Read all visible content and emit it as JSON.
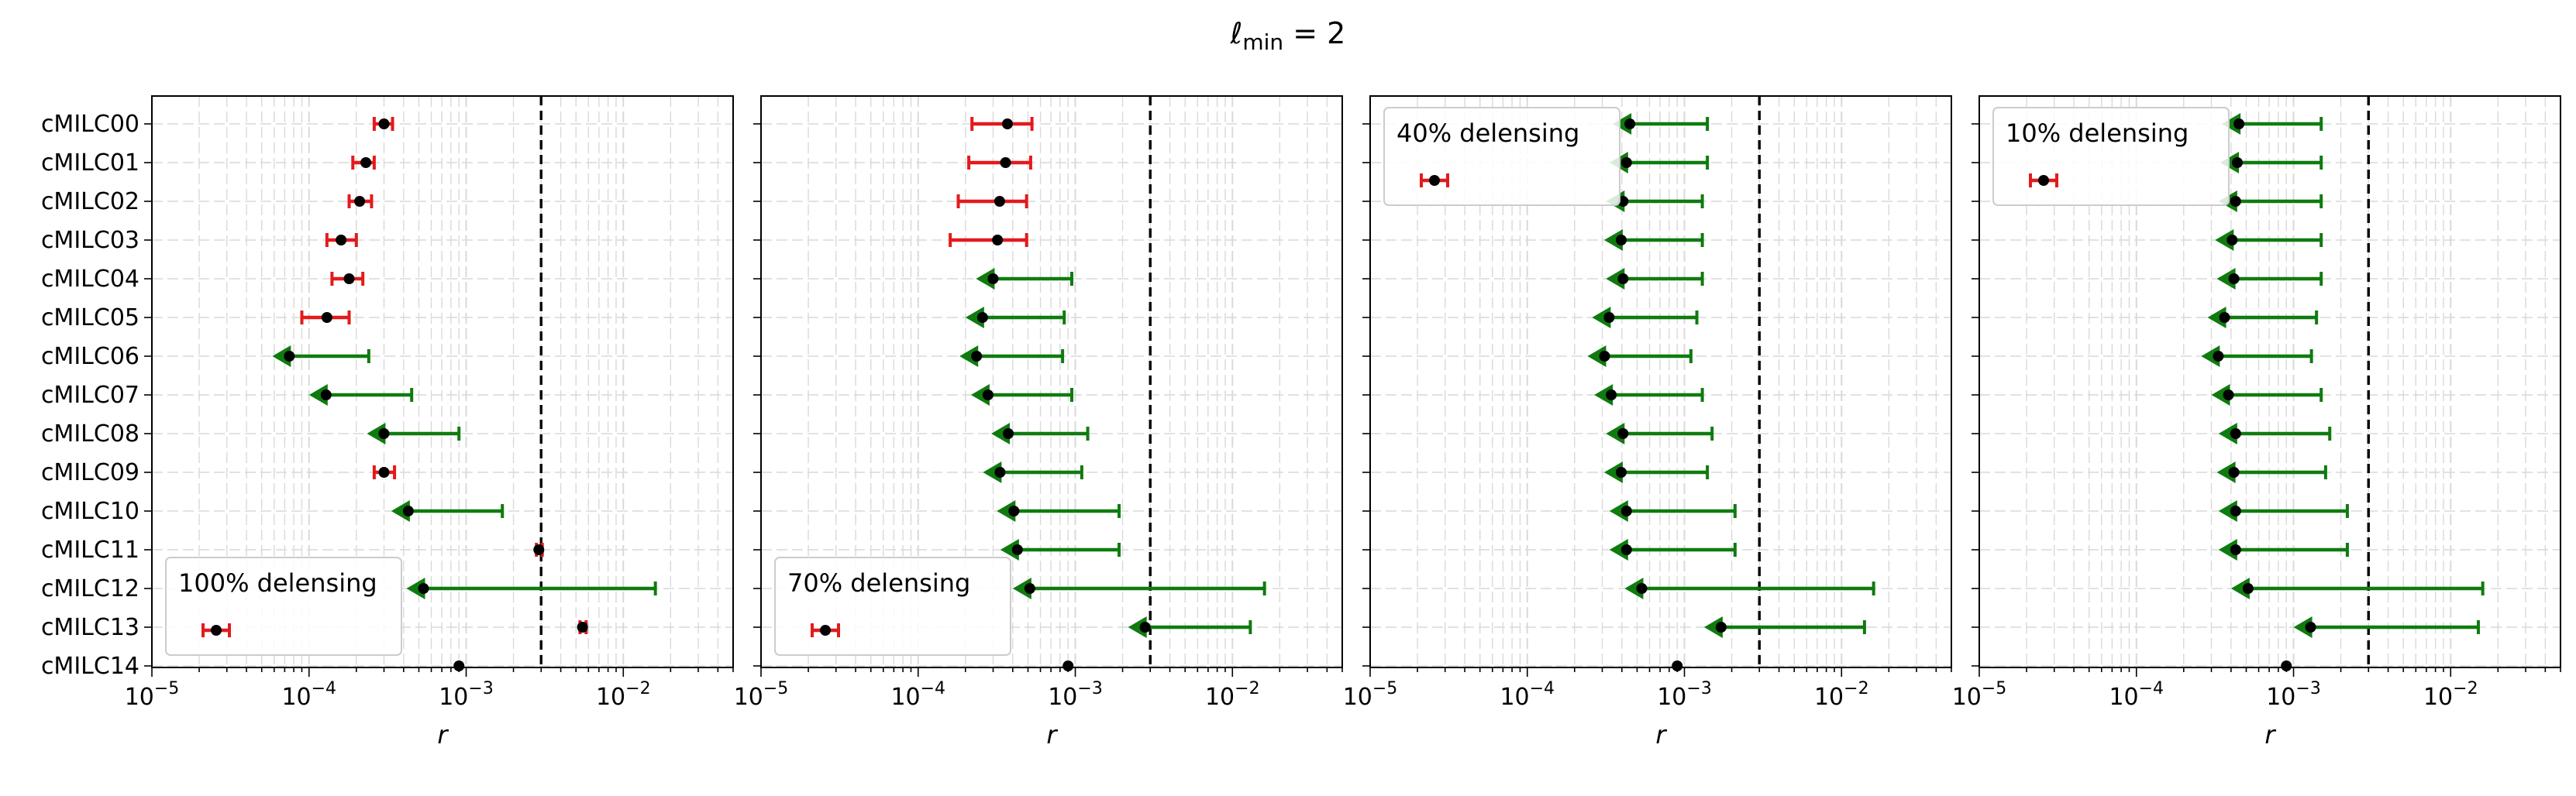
{
  "title_main": "ℓ",
  "title_sub": "min",
  "title_tail": " = 2",
  "chart_data": [
    {
      "type": "scatter",
      "legend": "100% delensing",
      "legend_placement": "lower-left",
      "xlabel": "r",
      "xscale": "log",
      "xlim": [
        1e-05,
        0.05
      ],
      "grid": true,
      "reference_line": 0.003,
      "categories": [
        "cMILC00",
        "cMILC01",
        "cMILC02",
        "cMILC03",
        "cMILC04",
        "cMILC05",
        "cMILC06",
        "cMILC07",
        "cMILC08",
        "cMILC09",
        "cMILC10",
        "cMILC11",
        "cMILC12",
        "cMILC13",
        "cMILC14"
      ],
      "points": [
        {
          "center": 0.0003,
          "kind": "detection",
          "low": 0.00026,
          "high": 0.00034
        },
        {
          "center": 0.00023,
          "kind": "detection",
          "low": 0.00019,
          "high": 0.00026
        },
        {
          "center": 0.00021,
          "kind": "detection",
          "low": 0.00018,
          "high": 0.00025
        },
        {
          "center": 0.00016,
          "kind": "detection",
          "low": 0.00013,
          "high": 0.0002
        },
        {
          "center": 0.00018,
          "kind": "detection",
          "low": 0.00014,
          "high": 0.00022
        },
        {
          "center": 0.00013,
          "kind": "detection",
          "low": 9e-05,
          "high": 0.00018
        },
        {
          "center": 7e-05,
          "kind": "upper_limit",
          "low": 7e-05,
          "high": 0.00024
        },
        {
          "center": 0.00012,
          "kind": "upper_limit",
          "low": 0.00012,
          "high": 0.00045
        },
        {
          "center": 0.00028,
          "kind": "upper_limit",
          "low": 0.00028,
          "high": 0.0009
        },
        {
          "center": 0.0003,
          "kind": "detection",
          "low": 0.00026,
          "high": 0.00035
        },
        {
          "center": 0.0004,
          "kind": "upper_limit",
          "low": 0.0004,
          "high": 0.0017
        },
        {
          "center": 0.0029,
          "kind": "detection",
          "low": 0.0028,
          "high": 0.00305
        },
        {
          "center": 0.0005,
          "kind": "upper_limit",
          "low": 0.0005,
          "high": 0.016
        },
        {
          "center": 0.0055,
          "kind": "detection",
          "low": 0.0053,
          "high": 0.0058
        },
        {
          "center": 0.0009,
          "kind": "point"
        }
      ]
    },
    {
      "type": "scatter",
      "legend": "70% delensing",
      "legend_placement": "lower-left",
      "xlabel": "r",
      "xscale": "log",
      "xlim": [
        1e-05,
        0.05
      ],
      "grid": true,
      "reference_line": 0.003,
      "categories": [
        "cMILC00",
        "cMILC01",
        "cMILC02",
        "cMILC03",
        "cMILC04",
        "cMILC05",
        "cMILC06",
        "cMILC07",
        "cMILC08",
        "cMILC09",
        "cMILC10",
        "cMILC11",
        "cMILC12",
        "cMILC13",
        "cMILC14"
      ],
      "points": [
        {
          "center": 0.00037,
          "kind": "detection",
          "low": 0.00022,
          "high": 0.00053
        },
        {
          "center": 0.00036,
          "kind": "detection",
          "low": 0.00021,
          "high": 0.00052
        },
        {
          "center": 0.00033,
          "kind": "detection",
          "low": 0.00018,
          "high": 0.00049
        },
        {
          "center": 0.00032,
          "kind": "detection",
          "low": 0.00016,
          "high": 0.00049
        },
        {
          "center": 0.00028,
          "kind": "upper_limit",
          "low": 0.00028,
          "high": 0.00095
        },
        {
          "center": 0.00024,
          "kind": "upper_limit",
          "low": 0.00024,
          "high": 0.00085
        },
        {
          "center": 0.00022,
          "kind": "upper_limit",
          "low": 0.00022,
          "high": 0.00083
        },
        {
          "center": 0.00026,
          "kind": "upper_limit",
          "low": 0.00026,
          "high": 0.00095
        },
        {
          "center": 0.00035,
          "kind": "upper_limit",
          "low": 0.00035,
          "high": 0.0012
        },
        {
          "center": 0.00031,
          "kind": "upper_limit",
          "low": 0.00031,
          "high": 0.0011
        },
        {
          "center": 0.00038,
          "kind": "upper_limit",
          "low": 0.00038,
          "high": 0.0019
        },
        {
          "center": 0.0004,
          "kind": "upper_limit",
          "low": 0.0004,
          "high": 0.0019
        },
        {
          "center": 0.00048,
          "kind": "upper_limit",
          "low": 0.00048,
          "high": 0.016
        },
        {
          "center": 0.0026,
          "kind": "upper_limit",
          "low": 0.0026,
          "high": 0.013
        },
        {
          "center": 0.0009,
          "kind": "point"
        }
      ]
    },
    {
      "type": "scatter",
      "legend": "40% delensing",
      "legend_placement": "upper-left",
      "xlabel": "r",
      "xscale": "log",
      "xlim": [
        1e-05,
        0.05
      ],
      "grid": true,
      "reference_line": 0.003,
      "categories": [
        "cMILC00",
        "cMILC01",
        "cMILC02",
        "cMILC03",
        "cMILC04",
        "cMILC05",
        "cMILC06",
        "cMILC07",
        "cMILC08",
        "cMILC09",
        "cMILC10",
        "cMILC11",
        "cMILC12",
        "cMILC13",
        "cMILC14"
      ],
      "points": [
        {
          "center": 0.00042,
          "kind": "upper_limit",
          "low": 0.00042,
          "high": 0.0014
        },
        {
          "center": 0.0004,
          "kind": "upper_limit",
          "low": 0.0004,
          "high": 0.0014
        },
        {
          "center": 0.00038,
          "kind": "upper_limit",
          "low": 0.00038,
          "high": 0.0013
        },
        {
          "center": 0.00037,
          "kind": "upper_limit",
          "low": 0.00037,
          "high": 0.0013
        },
        {
          "center": 0.00038,
          "kind": "upper_limit",
          "low": 0.00038,
          "high": 0.0013
        },
        {
          "center": 0.00031,
          "kind": "upper_limit",
          "low": 0.00031,
          "high": 0.0012
        },
        {
          "center": 0.00029,
          "kind": "upper_limit",
          "low": 0.00029,
          "high": 0.0011
        },
        {
          "center": 0.00032,
          "kind": "upper_limit",
          "low": 0.00032,
          "high": 0.0013
        },
        {
          "center": 0.00038,
          "kind": "upper_limit",
          "low": 0.00038,
          "high": 0.0015
        },
        {
          "center": 0.00037,
          "kind": "upper_limit",
          "low": 0.00037,
          "high": 0.0014
        },
        {
          "center": 0.0004,
          "kind": "upper_limit",
          "low": 0.0004,
          "high": 0.0021
        },
        {
          "center": 0.0004,
          "kind": "upper_limit",
          "low": 0.0004,
          "high": 0.0021
        },
        {
          "center": 0.0005,
          "kind": "upper_limit",
          "low": 0.0005,
          "high": 0.016
        },
        {
          "center": 0.0016,
          "kind": "upper_limit",
          "low": 0.0016,
          "high": 0.014
        },
        {
          "center": 0.0009,
          "kind": "point"
        }
      ]
    },
    {
      "type": "scatter",
      "legend": "10% delensing",
      "legend_placement": "upper-left",
      "xlabel": "r",
      "xscale": "log",
      "xlim": [
        1e-05,
        0.05
      ],
      "grid": true,
      "reference_line": 0.003,
      "categories": [
        "cMILC00",
        "cMILC01",
        "cMILC02",
        "cMILC03",
        "cMILC04",
        "cMILC05",
        "cMILC06",
        "cMILC07",
        "cMILC08",
        "cMILC09",
        "cMILC10",
        "cMILC11",
        "cMILC12",
        "cMILC13",
        "cMILC14"
      ],
      "points": [
        {
          "center": 0.00042,
          "kind": "upper_limit",
          "low": 0.00042,
          "high": 0.0015
        },
        {
          "center": 0.00041,
          "kind": "upper_limit",
          "low": 0.00041,
          "high": 0.0015
        },
        {
          "center": 0.0004,
          "kind": "upper_limit",
          "low": 0.0004,
          "high": 0.0015
        },
        {
          "center": 0.00038,
          "kind": "upper_limit",
          "low": 0.00038,
          "high": 0.0015
        },
        {
          "center": 0.00039,
          "kind": "upper_limit",
          "low": 0.00039,
          "high": 0.0015
        },
        {
          "center": 0.00034,
          "kind": "upper_limit",
          "low": 0.00034,
          "high": 0.0014
        },
        {
          "center": 0.00031,
          "kind": "upper_limit",
          "low": 0.00031,
          "high": 0.0013
        },
        {
          "center": 0.00036,
          "kind": "upper_limit",
          "low": 0.00036,
          "high": 0.0015
        },
        {
          "center": 0.0004,
          "kind": "upper_limit",
          "low": 0.0004,
          "high": 0.0017
        },
        {
          "center": 0.00039,
          "kind": "upper_limit",
          "low": 0.00039,
          "high": 0.0016
        },
        {
          "center": 0.0004,
          "kind": "upper_limit",
          "low": 0.0004,
          "high": 0.0022
        },
        {
          "center": 0.0004,
          "kind": "upper_limit",
          "low": 0.0004,
          "high": 0.0022
        },
        {
          "center": 0.00048,
          "kind": "upper_limit",
          "low": 0.00048,
          "high": 0.016
        },
        {
          "center": 0.0012,
          "kind": "upper_limit",
          "low": 0.0012,
          "high": 0.015
        },
        {
          "center": 0.0009,
          "kind": "point"
        }
      ]
    }
  ],
  "styling": {
    "detection_color": "#e31a1c",
    "upper_limit_color": "#0f7b0f",
    "point_color": "#000000",
    "reference_line_color": "#000000",
    "grid_color": "#d9d9d9"
  }
}
